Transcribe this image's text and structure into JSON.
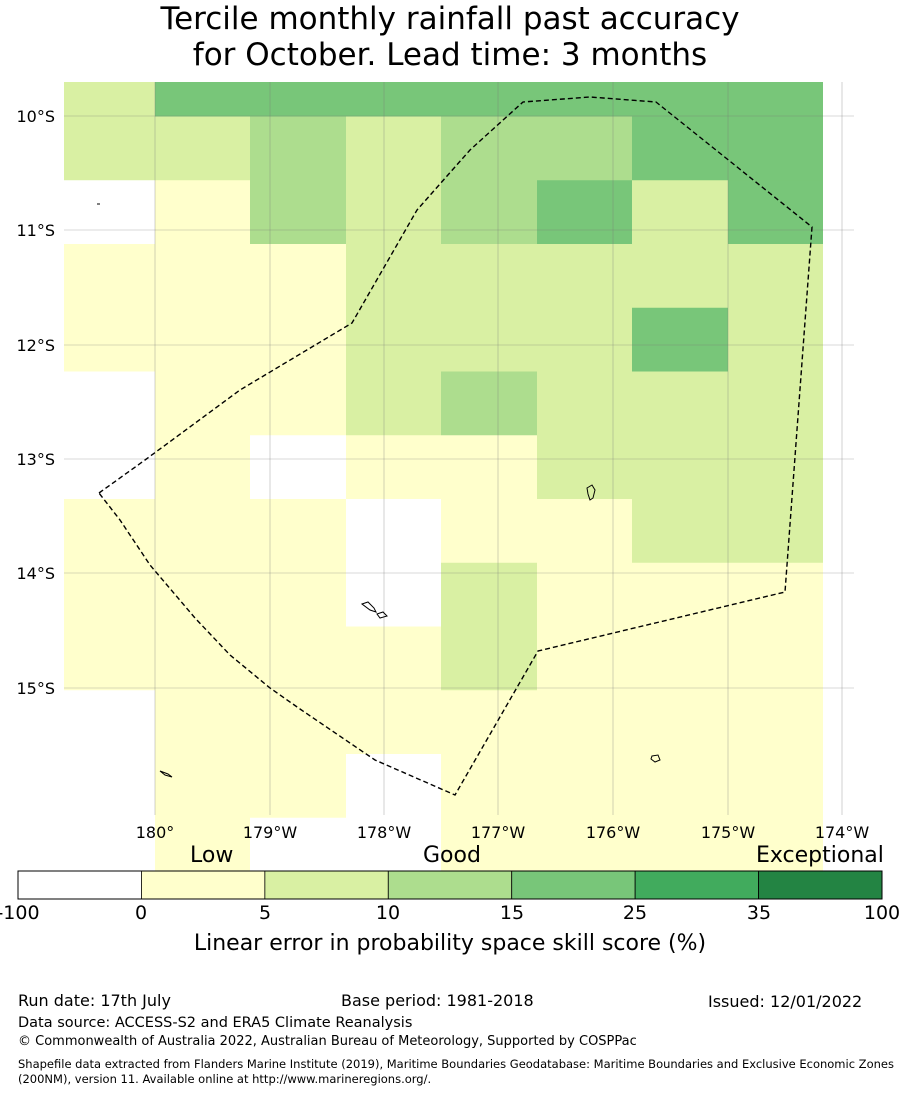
{
  "title_line1": "Tercile monthly rainfall past accuracy",
  "title_line2": "for October. Lead time: 3 months",
  "map": {
    "lat_labels": [
      "10°S",
      "11°S",
      "12°S",
      "13°S",
      "14°S",
      "15°S"
    ],
    "lon_labels": [
      "180°",
      "179°W",
      "178°W",
      "177°W",
      "176°W",
      "175°W",
      "174°W"
    ],
    "region_boundary_style": "dashed",
    "grid": true,
    "skill_categories_by_row": [
      [
        2,
        4,
        4,
        4,
        4,
        4,
        4,
        4
      ],
      [
        2,
        2,
        3,
        2,
        3,
        3,
        4,
        4
      ],
      [
        0,
        1,
        3,
        2,
        3,
        4,
        2,
        4
      ],
      [
        1,
        1,
        1,
        2,
        2,
        2,
        2,
        2
      ],
      [
        1,
        1,
        1,
        2,
        2,
        2,
        4,
        2
      ],
      [
        0,
        1,
        1,
        2,
        3,
        2,
        2,
        2
      ],
      [
        0,
        1,
        0,
        1,
        1,
        2,
        2,
        2
      ],
      [
        1,
        1,
        1,
        0,
        1,
        1,
        2,
        2
      ],
      [
        1,
        1,
        1,
        0,
        2,
        1,
        1,
        1
      ],
      [
        1,
        1,
        1,
        1,
        2,
        1,
        1,
        1
      ],
      [
        -1,
        1,
        1,
        1,
        1,
        1,
        1,
        1
      ],
      [
        -1,
        1,
        1,
        -1,
        1,
        1,
        1,
        1
      ],
      [
        -1,
        1,
        -1,
        -1,
        1,
        1,
        1,
        1
      ]
    ]
  },
  "colorbar": {
    "category_words": [
      "Low",
      "Good",
      "Exceptional"
    ],
    "ticks": [
      "-100",
      "0",
      "5",
      "10",
      "15",
      "25",
      "35",
      "100"
    ],
    "colors": [
      "#ffffff",
      "#ffffcc",
      "#d9f0a3",
      "#addd8e",
      "#78c679",
      "#41ab5d",
      "#238443"
    ],
    "label": "Linear error in probability space skill score (%)"
  },
  "footer": {
    "run_date": "Run date: 17th July",
    "base_period": "Base period: 1981-2018",
    "issued": "Issued: 12/01/2022",
    "data_source": "Data source: ACCESS-S2 and ERA5 Climate Reanalysis",
    "copyright": "© Commonwealth of Australia 2022, Australian Bureau of Meteorology, Supported by COSPPac",
    "shapefile_note": "Shapefile data extracted from Flanders Marine Institute (2019), Maritime Boundaries Geodatabase: Maritime Boundaries and Exclusive Economic Zones (200NM), version 11. Available online at http://www.marineregions.org/."
  }
}
